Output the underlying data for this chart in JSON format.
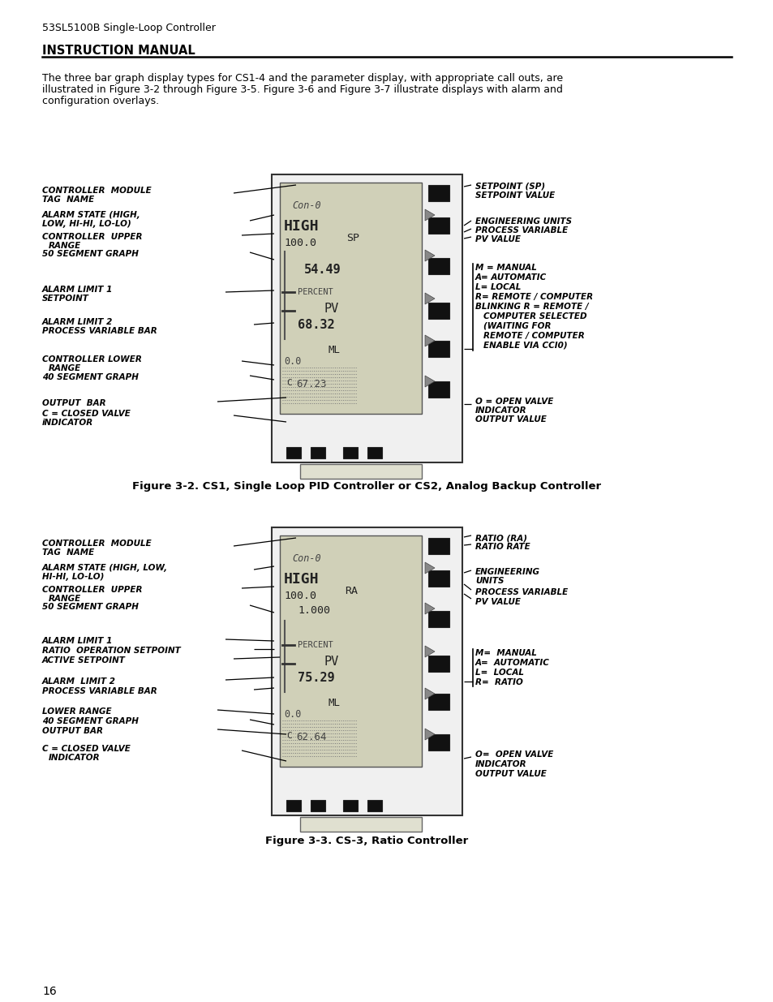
{
  "page_header": "53SL5100B Single-Loop Controller",
  "section_header": "INSTRUCTION MANUAL",
  "body_text_1": "The three bar graph display types for CS1-4 and the parameter display, with appropriate call outs, are",
  "body_text_2": "illustrated in Figure 3-2 through Figure 3-5. Figure 3-6 and Figure 3-7 illustrate displays with alarm and",
  "body_text_3": "configuration overlays.",
  "fig1_caption": "Figure 3-2. CS1, Single Loop PID Controller or CS2, Analog Backup Controller",
  "fig2_caption": "Figure 3-3. CS-3, Ratio Controller",
  "page_number": "16",
  "bg": "#ffffff",
  "tc": "#000000"
}
